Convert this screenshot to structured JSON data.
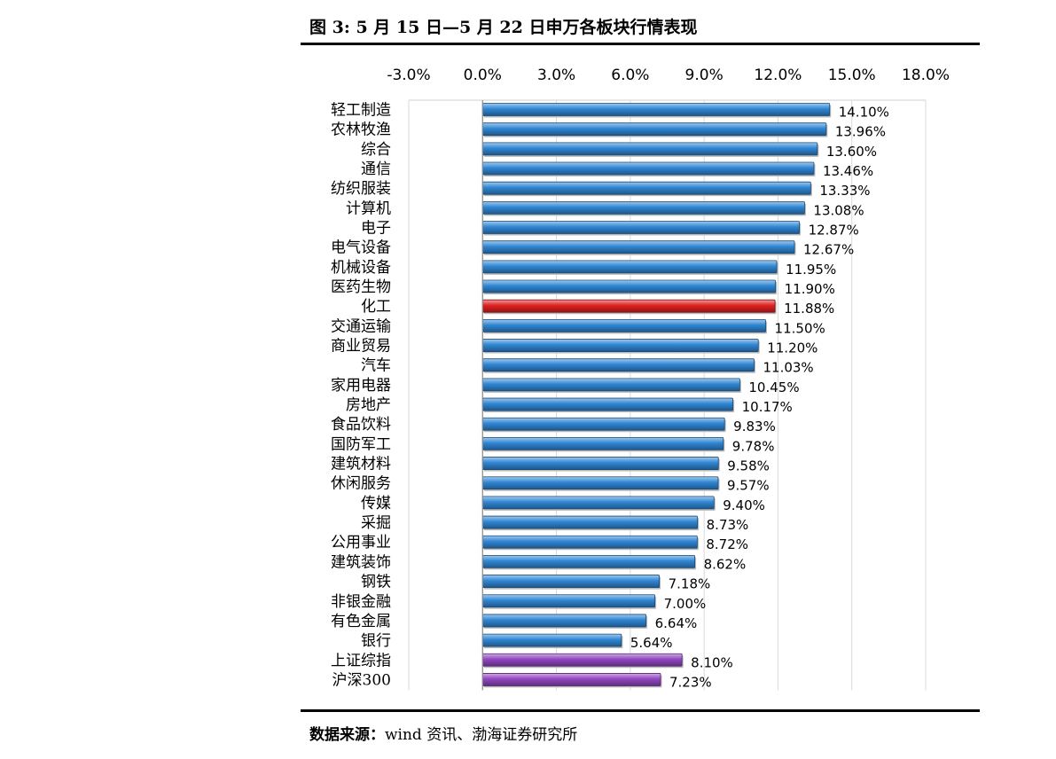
{
  "header": {
    "title": "图 3:  5 月 15 日—5 月 22 日申万各板块行情表现"
  },
  "footer": {
    "source_label": "数据来源：",
    "source_text": "wind 资讯、渤海证券研究所"
  },
  "colors": {
    "bar": "#2f86d4",
    "highlight": "#e02020",
    "index": "#9146c0"
  },
  "chart_data": {
    "type": "bar",
    "orientation": "horizontal",
    "title": "",
    "xlabel": "",
    "ylabel": "",
    "xlim": [
      -3.0,
      18.0
    ],
    "x_ticks": [
      "-3.0%",
      "0.0%",
      "3.0%",
      "6.0%",
      "9.0%",
      "12.0%",
      "15.0%",
      "18.0%"
    ],
    "x_axis_position": "top",
    "categories": [
      "轻工制造",
      "农林牧渔",
      "综合",
      "通信",
      "纺织服装",
      "计算机",
      "电子",
      "电气设备",
      "机械设备",
      "医药生物",
      "化工",
      "交通运输",
      "商业贸易",
      "汽车",
      "家用电器",
      "房地产",
      "食品饮料",
      "国防军工",
      "建筑材料",
      "休闲服务",
      "传媒",
      "采掘",
      "公用事业",
      "建筑装饰",
      "钢铁",
      "非银金融",
      "有色金属",
      "银行",
      "上证综指",
      "沪深300"
    ],
    "values": [
      14.1,
      13.96,
      13.6,
      13.46,
      13.33,
      13.08,
      12.87,
      12.67,
      11.95,
      11.9,
      11.88,
      11.5,
      11.2,
      11.03,
      10.45,
      10.17,
      9.83,
      9.78,
      9.58,
      9.57,
      9.4,
      8.73,
      8.72,
      8.62,
      7.18,
      7.0,
      6.64,
      5.64,
      8.1,
      7.23
    ],
    "value_labels": [
      "14.10%",
      "13.96%",
      "13.60%",
      "13.46%",
      "13.33%",
      "13.08%",
      "12.87%",
      "12.67%",
      "11.95%",
      "11.90%",
      "11.88%",
      "11.50%",
      "11.20%",
      "11.03%",
      "10.45%",
      "10.17%",
      "9.83%",
      "9.78%",
      "9.58%",
      "9.57%",
      "9.40%",
      "8.73%",
      "8.72%",
      "8.62%",
      "7.18%",
      "7.00%",
      "6.64%",
      "5.64%",
      "8.10%",
      "7.23%"
    ],
    "bar_colors": [
      "bar",
      "bar",
      "bar",
      "bar",
      "bar",
      "bar",
      "bar",
      "bar",
      "bar",
      "bar",
      "highlight",
      "bar",
      "bar",
      "bar",
      "bar",
      "bar",
      "bar",
      "bar",
      "bar",
      "bar",
      "bar",
      "bar",
      "bar",
      "bar",
      "bar",
      "bar",
      "bar",
      "bar",
      "index",
      "index"
    ],
    "grid": true,
    "legend": "none"
  }
}
